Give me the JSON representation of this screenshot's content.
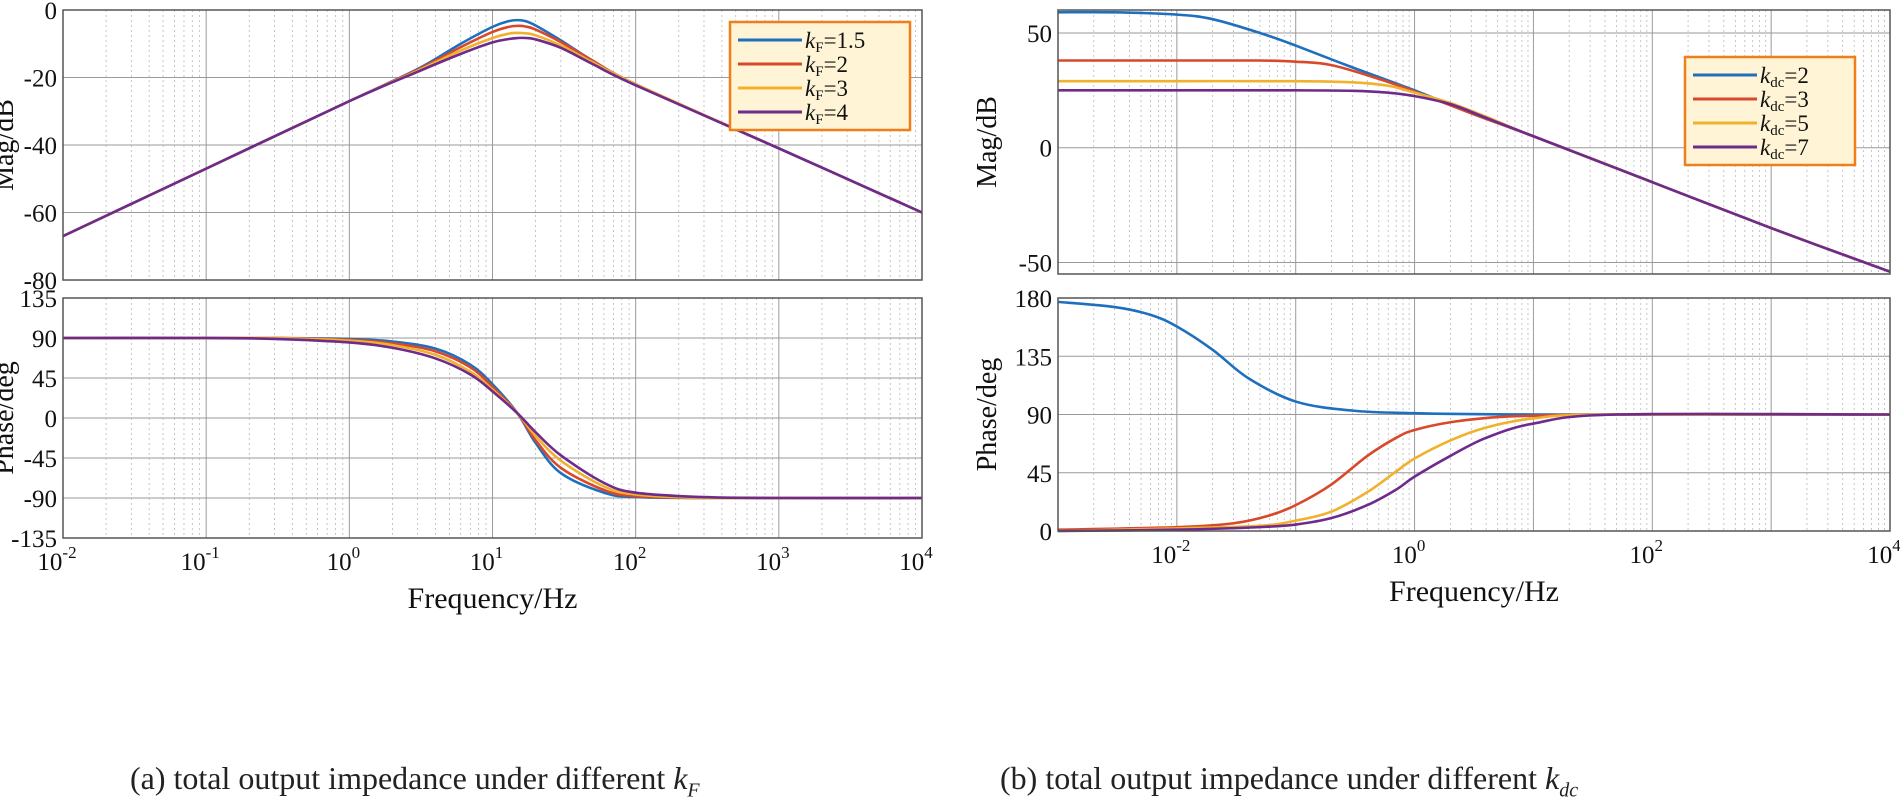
{
  "figure": {
    "caption_a": {
      "text": "(a) total output impedance under different ",
      "symbol": "k",
      "sub": "F"
    },
    "caption_b": {
      "text": "(b) total output impedance under different ",
      "symbol": "k",
      "sub": "dc"
    }
  },
  "colors": {
    "c1": "#1f6fbf",
    "c2": "#d9482b",
    "c3": "#f0b12c",
    "c4": "#6e2a8c",
    "legend_bg": "#fff5d6",
    "legend_border": "#f07f1a"
  },
  "chart_data": [
    {
      "id": "a-mag",
      "type": "line",
      "panel": "(a)",
      "xlabel": "",
      "ylabel": "Mag/dB",
      "xscale": "log",
      "xlim": [
        0.01,
        10000
      ],
      "ylim": [
        -80,
        0
      ],
      "yticks": [
        0,
        -20,
        -40,
        -60,
        -80
      ],
      "legend": {
        "position": "top-right",
        "entries": [
          {
            "k": "k",
            "sub": "F",
            "val": "=1.5"
          },
          {
            "k": "k",
            "sub": "F",
            "val": "=2"
          },
          {
            "k": "k",
            "sub": "F",
            "val": "=3"
          },
          {
            "k": "k",
            "sub": "F",
            "val": "=4"
          }
        ]
      },
      "series": [
        {
          "name": "kF=1.5",
          "x": [
            0.01,
            0.1,
            1,
            3,
            6,
            10,
            13,
            15,
            17,
            20,
            30,
            50,
            100,
            1000,
            10000
          ],
          "values": [
            -67,
            -47,
            -27,
            -17.5,
            -10,
            -5,
            -3.3,
            -3,
            -3.3,
            -4.6,
            -9,
            -15,
            -22,
            -41,
            -60
          ]
        },
        {
          "name": "kF=2",
          "x": [
            0.01,
            0.1,
            1,
            3,
            6,
            10,
            13,
            15,
            17,
            20,
            30,
            50,
            100,
            1000,
            10000
          ],
          "values": [
            -67,
            -47,
            -27,
            -17.7,
            -11,
            -6.5,
            -5,
            -4.7,
            -4.9,
            -5.8,
            -9.5,
            -15,
            -22,
            -41,
            -60
          ]
        },
        {
          "name": "kF=3",
          "x": [
            0.01,
            0.1,
            1,
            3,
            6,
            10,
            13,
            15,
            17,
            20,
            30,
            50,
            100,
            1000,
            10000
          ],
          "values": [
            -67,
            -47,
            -27,
            -18,
            -12,
            -8.3,
            -7,
            -6.8,
            -6.9,
            -7.5,
            -10.5,
            -15.5,
            -22,
            -41,
            -60
          ]
        },
        {
          "name": "kF=4",
          "x": [
            0.01,
            0.1,
            1,
            3,
            6,
            10,
            13,
            15,
            17,
            20,
            30,
            50,
            100,
            1000,
            10000
          ],
          "values": [
            -67,
            -47,
            -27,
            -18.3,
            -13,
            -9.6,
            -8.6,
            -8.3,
            -8.3,
            -8.7,
            -11.2,
            -16,
            -22.3,
            -41,
            -60
          ]
        }
      ]
    },
    {
      "id": "a-phase",
      "type": "line",
      "panel": "(a)",
      "xlabel": "Frequency/Hz",
      "ylabel": "Phase/deg",
      "xscale": "log",
      "xlim": [
        0.01,
        10000
      ],
      "ylim": [
        -135,
        135
      ],
      "yticks": [
        135,
        90,
        45,
        0,
        -45,
        -90,
        -135
      ],
      "xticks": [
        {
          "base": "10",
          "exp": "-2"
        },
        {
          "base": "10",
          "exp": "-1"
        },
        {
          "base": "10",
          "exp": "0"
        },
        {
          "base": "10",
          "exp": "1"
        },
        {
          "base": "10",
          "exp": "2"
        },
        {
          "base": "10",
          "exp": "3"
        },
        {
          "base": "10",
          "exp": "4"
        }
      ],
      "series": [
        {
          "name": "kF=1.5",
          "x": [
            0.01,
            0.1,
            0.3,
            1,
            2,
            4,
            7,
            10,
            15,
            20,
            30,
            60,
            100,
            300,
            1000,
            10000
          ],
          "values": [
            90,
            90,
            90,
            89,
            86,
            78,
            60,
            38,
            5,
            -28,
            -62,
            -84,
            -89,
            -90,
            -90,
            -90
          ]
        },
        {
          "name": "kF=2",
          "x": [
            0.01,
            0.1,
            0.3,
            1,
            2,
            4,
            7,
            10,
            15,
            20,
            30,
            60,
            100,
            300,
            1000,
            10000
          ],
          "values": [
            90,
            90,
            90,
            88,
            84,
            75,
            57,
            35,
            5,
            -25,
            -56,
            -81,
            -88,
            -90,
            -90,
            -90
          ]
        },
        {
          "name": "kF=3",
          "x": [
            0.01,
            0.1,
            0.3,
            1,
            2,
            4,
            7,
            10,
            15,
            20,
            30,
            60,
            100,
            300,
            1000,
            10000
          ],
          "values": [
            90,
            90,
            90,
            87,
            82,
            71,
            52,
            32,
            5,
            -20,
            -48,
            -77,
            -86,
            -90,
            -90,
            -90
          ]
        },
        {
          "name": "kF=4",
          "x": [
            0.01,
            0.1,
            0.3,
            1,
            2,
            4,
            7,
            10,
            15,
            20,
            30,
            60,
            100,
            300,
            1000,
            10000
          ],
          "values": [
            90,
            90,
            89,
            85,
            79,
            67,
            49,
            30,
            5,
            -16,
            -42,
            -73,
            -84,
            -89,
            -90,
            -90
          ]
        }
      ]
    },
    {
      "id": "b-mag",
      "type": "line",
      "panel": "(b)",
      "xlabel": "",
      "ylabel": "Mag/dB",
      "xscale": "log",
      "xlim": [
        0.001,
        10000
      ],
      "ylim": [
        -55,
        60
      ],
      "yticks": [
        50,
        0,
        -50
      ],
      "legend": {
        "position": "top-right",
        "entries": [
          {
            "k": "k",
            "sub": "dc",
            "val": "=2"
          },
          {
            "k": "k",
            "sub": "dc",
            "val": "=3"
          },
          {
            "k": "k",
            "sub": "dc",
            "val": "=5"
          },
          {
            "k": "k",
            "sub": "dc",
            "val": "=7"
          }
        ]
      },
      "series": [
        {
          "name": "kdc=2",
          "x": [
            0.001,
            0.003,
            0.01,
            0.02,
            0.05,
            0.1,
            0.3,
            1,
            3,
            10,
            100,
            1000,
            10000
          ],
          "values": [
            59,
            59,
            58,
            56,
            50,
            44.5,
            35,
            25,
            15,
            5,
            -15,
            -35,
            -54
          ]
        },
        {
          "name": "kdc=3",
          "x": [
            0.001,
            0.01,
            0.05,
            0.1,
            0.2,
            0.5,
            1,
            3,
            10,
            100,
            1000,
            10000
          ],
          "values": [
            38,
            38,
            38,
            37.5,
            36,
            30,
            24.5,
            15,
            5,
            -15,
            -35,
            -54
          ]
        },
        {
          "name": "kdc=5",
          "x": [
            0.001,
            0.01,
            0.1,
            0.3,
            0.6,
            1,
            2,
            4,
            10,
            100,
            1000,
            10000
          ],
          "values": [
            29,
            29,
            29,
            28.5,
            27,
            24,
            19.5,
            13.5,
            5,
            -15,
            -35,
            -54
          ]
        },
        {
          "name": "kdc=7",
          "x": [
            0.001,
            0.01,
            0.1,
            0.3,
            0.6,
            1,
            2,
            4,
            10,
            100,
            1000,
            10000
          ],
          "values": [
            25,
            25,
            25,
            24.8,
            24,
            22.5,
            19,
            13,
            5,
            -15,
            -35,
            -54
          ]
        }
      ]
    },
    {
      "id": "b-phase",
      "type": "line",
      "panel": "(b)",
      "xlabel": "Frequency/Hz",
      "ylabel": "Phase/deg",
      "xscale": "log",
      "xlim": [
        0.001,
        10000
      ],
      "ylim": [
        0,
        180
      ],
      "yticks": [
        180,
        135,
        90,
        45,
        0
      ],
      "xticks": [
        {
          "base": "10",
          "exp": "-2"
        },
        {
          "base": "10",
          "exp": "0"
        },
        {
          "base": "10",
          "exp": "2"
        },
        {
          "base": "10",
          "exp": "4"
        }
      ],
      "series": [
        {
          "name": "kdc=2",
          "x": [
            0.001,
            0.003,
            0.006,
            0.01,
            0.02,
            0.04,
            0.1,
            0.3,
            1,
            10,
            10000
          ],
          "values": [
            177,
            173,
            167,
            158,
            140,
            118,
            100,
            93,
            91,
            90,
            90
          ]
        },
        {
          "name": "kdc=3",
          "x": [
            0.001,
            0.01,
            0.03,
            0.06,
            0.1,
            0.2,
            0.4,
            0.7,
            1,
            2,
            5,
            10,
            40,
            10000
          ],
          "values": [
            1,
            3,
            6,
            12,
            20,
            36,
            58,
            72,
            78,
            84,
            88,
            89,
            90,
            90
          ]
        },
        {
          "name": "kdc=5",
          "x": [
            0.001,
            0.01,
            0.05,
            0.1,
            0.2,
            0.4,
            0.7,
            1,
            2,
            4,
            10,
            40,
            10000
          ],
          "values": [
            0,
            2,
            4,
            8,
            15,
            30,
            46,
            56,
            70,
            80,
            87,
            90,
            90
          ]
        },
        {
          "name": "kdc=7",
          "x": [
            0.001,
            0.01,
            0.05,
            0.1,
            0.2,
            0.4,
            0.7,
            1,
            2,
            4,
            10,
            50,
            10000
          ],
          "values": [
            0,
            1,
            3,
            5,
            10,
            20,
            32,
            42,
            58,
            72,
            83,
            90,
            90
          ]
        }
      ]
    }
  ]
}
